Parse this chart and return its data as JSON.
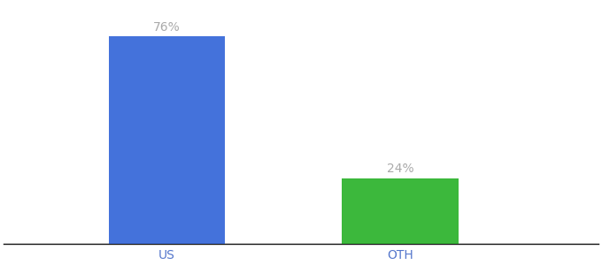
{
  "categories": [
    "US",
    "OTH"
  ],
  "values": [
    76,
    24
  ],
  "bar_colors": [
    "#4472db",
    "#3cb83c"
  ],
  "label_texts": [
    "76%",
    "24%"
  ],
  "background_color": "#ffffff",
  "ylim": [
    0,
    88
  ],
  "bar_width": 0.5,
  "xlabel_fontsize": 10,
  "label_fontsize": 10,
  "label_color": "#aaaaaa",
  "axis_line_color": "#111111",
  "tick_label_color": "#5577cc"
}
